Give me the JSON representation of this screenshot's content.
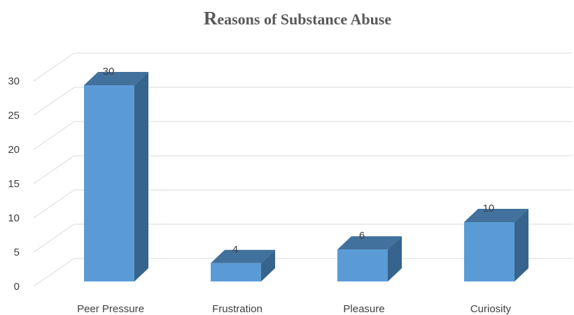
{
  "chart_data": {
    "type": "bar",
    "title_initial": "R",
    "title_rest": "easons of Substance Abuse",
    "categories": [
      "Peer Pressure",
      "Frustration",
      "Pleasure",
      "Curiosity"
    ],
    "values": [
      30,
      4,
      6,
      10
    ],
    "data_labels": [
      "30",
      "4",
      "6",
      "10"
    ],
    "ylim": [
      0,
      30
    ],
    "yticks": [
      "0",
      "5",
      "10",
      "15",
      "20",
      "25",
      "30"
    ],
    "grid": true,
    "three_d": true,
    "colors": {
      "front": "#5b9bd5",
      "top": "#41719c",
      "side": "#36648c",
      "grid": "#d9d9d9"
    }
  }
}
